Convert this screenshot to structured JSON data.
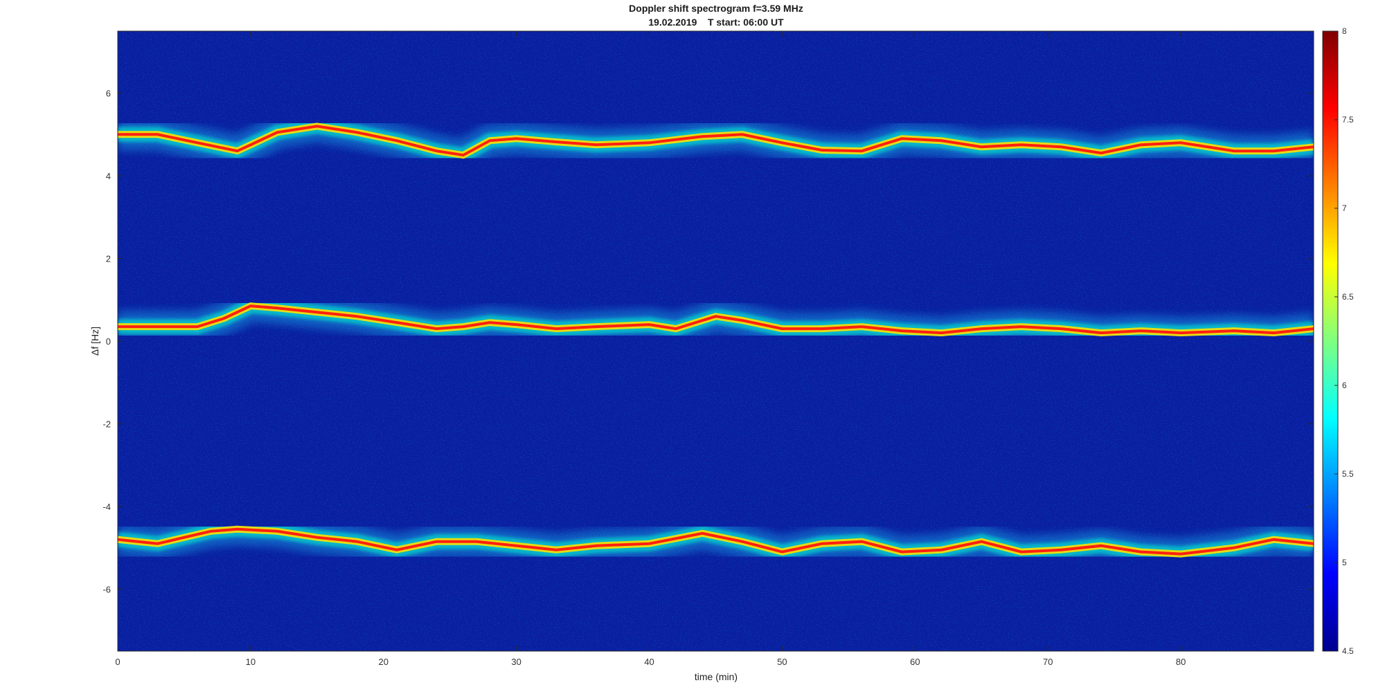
{
  "chart_data": {
    "type": "heatmap",
    "title": "Doppler shift spectrogram f=3.59 MHz",
    "subtitle": "19.02.2019    T start: 06:00 UT",
    "xlabel": "time (min)",
    "ylabel": "Δf [Hz]",
    "xlim": [
      0,
      90
    ],
    "ylim": [
      -7.5,
      7.5
    ],
    "x_ticks": [
      0,
      10,
      20,
      30,
      40,
      50,
      60,
      70,
      80
    ],
    "y_ticks": [
      -6,
      -4,
      -2,
      0,
      2,
      4,
      6
    ],
    "colormap": "jet",
    "colorbar": {
      "range": [
        4.5,
        8
      ],
      "ticks": [
        4.5,
        5,
        5.5,
        6,
        6.5,
        7,
        7.5,
        8
      ]
    },
    "series": [
      {
        "x": [
          0,
          3,
          6,
          9,
          10,
          12,
          15,
          18,
          21,
          24,
          26,
          28,
          30,
          33,
          36,
          40,
          44,
          47,
          50,
          53,
          56,
          59,
          62,
          65,
          68,
          71,
          74,
          77,
          80,
          84,
          87,
          90
        ],
        "y": [
          5.0,
          5.0,
          4.8,
          4.6,
          4.75,
          5.05,
          5.2,
          5.05,
          4.85,
          4.6,
          4.5,
          4.85,
          4.9,
          4.82,
          4.75,
          4.8,
          4.95,
          5.0,
          4.8,
          4.62,
          4.6,
          4.9,
          4.85,
          4.7,
          4.75,
          4.7,
          4.55,
          4.75,
          4.8,
          4.6,
          4.6,
          4.7
        ]
      },
      {
        "x": [
          0,
          3,
          6,
          8,
          10,
          12,
          15,
          18,
          21,
          24,
          26,
          28,
          30,
          33,
          36,
          40,
          42,
          45,
          47,
          50,
          53,
          56,
          59,
          62,
          65,
          68,
          71,
          74,
          77,
          80,
          84,
          87,
          90
        ],
        "y": [
          0.35,
          0.35,
          0.35,
          0.55,
          0.85,
          0.8,
          0.7,
          0.6,
          0.45,
          0.3,
          0.35,
          0.45,
          0.4,
          0.3,
          0.35,
          0.4,
          0.3,
          0.6,
          0.5,
          0.3,
          0.3,
          0.35,
          0.25,
          0.2,
          0.3,
          0.35,
          0.3,
          0.2,
          0.25,
          0.2,
          0.25,
          0.2,
          0.3
        ]
      },
      {
        "x": [
          0,
          3,
          5,
          7,
          9,
          12,
          15,
          18,
          21,
          24,
          27,
          30,
          33,
          36,
          40,
          44,
          47,
          50,
          53,
          56,
          59,
          62,
          65,
          68,
          71,
          74,
          77,
          80,
          84,
          87,
          90
        ],
        "y": [
          -4.8,
          -4.9,
          -4.75,
          -4.6,
          -4.55,
          -4.6,
          -4.75,
          -4.85,
          -5.05,
          -4.85,
          -4.85,
          -4.95,
          -5.05,
          -4.95,
          -4.9,
          -4.65,
          -4.85,
          -5.1,
          -4.9,
          -4.85,
          -5.1,
          -5.05,
          -4.85,
          -5.1,
          -5.05,
          -4.95,
          -5.1,
          -5.15,
          -5.0,
          -4.8,
          -4.9
        ]
      }
    ]
  }
}
